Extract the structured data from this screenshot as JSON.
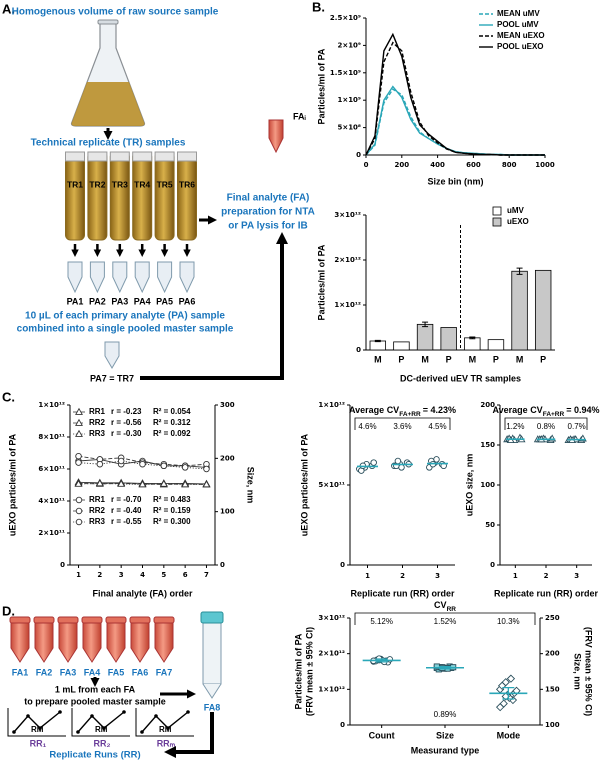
{
  "panel_labels": [
    "A.",
    "B.",
    "C.",
    "D."
  ],
  "diagram_a": {
    "source": "Homogenous volume of raw source sample",
    "tr_heading": "Technical replicate (TR) samples",
    "tubes": [
      "TR1",
      "TR2",
      "TR3",
      "TR4",
      "TR5",
      "TR6"
    ],
    "pa": [
      "PA1",
      "PA2",
      "PA3",
      "PA4",
      "PA5",
      "PA6"
    ],
    "pool_text": [
      "10 µL of each primary analyte (PA) sample",
      "combined into a single pooled master sample"
    ],
    "pool_tube": "PA7 = TR7",
    "fa_tube": "FAᵢ",
    "fa_text": [
      "Final analyte (FA)",
      "preparation for NTA",
      "or PA lysis for IB"
    ]
  },
  "diagram_d": {
    "tubes": [
      "FA1",
      "FA2",
      "FA3",
      "FA4",
      "FA5",
      "FA6",
      "FA7"
    ],
    "master": "FA8",
    "text": [
      "1 mL from each FA",
      "to prepare pooled master sample"
    ],
    "runs": [
      "RR₁",
      "RR₂",
      "RRₘ"
    ],
    "run_point": "RM",
    "caption": "Replicate Runs (RR)"
  },
  "chart_data": [
    {
      "type": "line",
      "xlabel": "Size bin (nm)",
      "ylabel": "Particles/ml of PA",
      "legend": "upper right",
      "x": [
        0,
        50,
        100,
        150,
        200,
        250,
        300,
        350,
        400,
        450,
        500,
        550,
        600,
        650,
        700,
        750,
        800,
        850,
        900,
        950,
        1000
      ],
      "xlim": [
        0,
        1000
      ],
      "xticks": [
        0,
        200,
        400,
        600,
        800,
        1000
      ],
      "ylim": [
        0,
        2500000000.0
      ],
      "yticks": [
        0,
        {
          "value": 500000000.0,
          "label": "5×10⁸"
        },
        {
          "value": 1000000000.0,
          "label": "1×10⁹"
        },
        {
          "value": 1500000000.0,
          "label": "1.5×10⁹"
        },
        {
          "value": 2000000000.0,
          "label": "2×10⁹"
        },
        {
          "value": 2500000000.0,
          "label": "2.5×10⁹"
        }
      ],
      "series": [
        {
          "name": "MEAN uMV",
          "color": "#2aa7b8",
          "linestyle": "dashed",
          "values": [
            0,
            180000000.0,
            950000000.0,
            1200000000.0,
            1100000000.0,
            700000000.0,
            420000000.0,
            300000000.0,
            200000000.0,
            120000000.0,
            60000000.0,
            40000000.0,
            30000000.0,
            20000000.0,
            10000000.0,
            10000000.0,
            0,
            0,
            0,
            0,
            0
          ]
        },
        {
          "name": "POOL uMV",
          "color": "#2aa7b8",
          "linestyle": "solid",
          "values": [
            0,
            200000000.0,
            1000000000.0,
            1250000000.0,
            1050000000.0,
            650000000.0,
            400000000.0,
            300000000.0,
            200000000.0,
            120000000.0,
            60000000.0,
            40000000.0,
            30000000.0,
            20000000.0,
            10000000.0,
            10000000.0,
            0,
            0,
            0,
            0,
            0
          ]
        },
        {
          "name": "MEAN uEXO",
          "color": "#000000",
          "linestyle": "dashed",
          "values": [
            0,
            300000000.0,
            1700000000.0,
            2050000000.0,
            1900000000.0,
            1150000000.0,
            600000000.0,
            350000000.0,
            220000000.0,
            110000000.0,
            50000000.0,
            30000000.0,
            20000000.0,
            10000000.0,
            10000000.0,
            0,
            0,
            0,
            0,
            0,
            0
          ]
        },
        {
          "name": "POOL uEXO",
          "color": "#000000",
          "linestyle": "solid",
          "values": [
            0,
            350000000.0,
            1900000000.0,
            2200000000.0,
            1800000000.0,
            1050000000.0,
            550000000.0,
            380000000.0,
            250000000.0,
            120000000.0,
            50000000.0,
            30000000.0,
            20000000.0,
            10000000.0,
            10000000.0,
            0,
            0,
            0,
            0,
            0,
            0
          ]
        }
      ]
    },
    {
      "type": "bar",
      "xlabel": "DC-derived uEV TR samples",
      "ylabel": "Particles/ml of PA",
      "legend": "upper right",
      "categories": [
        "M",
        "P",
        "M",
        "P",
        "M",
        "P",
        "M",
        "P"
      ],
      "ylim": [
        0,
        3000000000000.0
      ],
      "yticks": [
        0,
        {
          "value": 1000000000000.0,
          "label": "1×10¹²"
        },
        {
          "value": 2000000000000.0,
          "label": "2×10¹²"
        },
        {
          "value": 3000000000000.0,
          "label": "3×10¹²"
        }
      ],
      "series": [
        {
          "name": "uMV",
          "color": "#ffffff",
          "values": [
            200000000000.0,
            180000000000.0,
            null,
            null,
            270000000000.0,
            230000000000.0,
            null,
            null
          ],
          "errors": [
            15000000000.0,
            null,
            null,
            null,
            20000000000.0,
            null,
            null,
            null
          ]
        },
        {
          "name": "uEXO",
          "color": "#c8c8c8",
          "values": [
            null,
            null,
            570000000000.0,
            500000000000.0,
            null,
            null,
            1750000000000.0,
            1770000000000.0
          ],
          "errors": [
            null,
            null,
            50000000000.0,
            null,
            null,
            null,
            70000000000.0,
            null
          ]
        }
      ]
    },
    {
      "type": "line",
      "xlabel": "Final analyte (FA) order",
      "ylabel": "uEXO particles/ml of PA",
      "y2label": "Size, nm",
      "x": [
        1,
        2,
        3,
        4,
        5,
        6,
        7
      ],
      "xlim": [
        0.6,
        7.4
      ],
      "xticks": [
        1,
        2,
        3,
        4,
        5,
        6,
        7
      ],
      "ylim": [
        0,
        1000000000000.0
      ],
      "yticks": [
        0,
        {
          "value": 200000000000.0,
          "label": "2×10¹¹"
        },
        {
          "value": 400000000000.0,
          "label": "4×10¹¹"
        },
        {
          "value": 600000000000.0,
          "label": "6×10¹¹"
        },
        {
          "value": 800000000000.0,
          "label": "8×10¹¹"
        },
        {
          "value": 1000000000000.0,
          "label": "1×10¹²"
        }
      ],
      "y2lim": [
        0,
        300
      ],
      "y2ticks": [
        0,
        100,
        200,
        300
      ],
      "series": [
        {
          "name": "RR1",
          "axis": "y2",
          "marker": "triangle",
          "linestyle": "solid",
          "color": "#333333",
          "stats": [
            "r = -0.23",
            "R² = 0.054"
          ],
          "values": [
            155,
            154,
            154,
            153,
            153,
            153,
            152
          ]
        },
        {
          "name": "RR2",
          "axis": "y2",
          "marker": "triangle",
          "linestyle": "dashed",
          "color": "#333333",
          "stats": [
            "r = -0.56",
            "R² = 0.312"
          ],
          "values": [
            153,
            152,
            153,
            152,
            151,
            152,
            151
          ]
        },
        {
          "name": "RR3",
          "axis": "y2",
          "marker": "triangle",
          "linestyle": "dotted",
          "color": "#333333",
          "stats": [
            "r = -0.30",
            "R² = 0.092"
          ],
          "values": [
            152,
            153,
            152,
            151,
            152,
            151,
            151
          ]
        },
        {
          "name": "RR1",
          "marker": "circle",
          "linestyle": "solid",
          "color": "#333333",
          "stats": [
            "r = -0.70",
            "R² = 0.483"
          ],
          "values": [
            650000000000.0,
            660000000000.0,
            630000000000.0,
            650000000000.0,
            620000000000.0,
            620000000000.0,
            610000000000.0
          ]
        },
        {
          "name": "RR2",
          "marker": "circle",
          "linestyle": "dashed",
          "color": "#333333",
          "stats": [
            "r = -0.40",
            "R² = 0.159"
          ],
          "values": [
            680000000000.0,
            660000000000.0,
            670000000000.0,
            640000000000.0,
            630000000000.0,
            620000000000.0,
            630000000000.0
          ]
        },
        {
          "name": "RR3",
          "marker": "circle",
          "linestyle": "dotted",
          "color": "#333333",
          "stats": [
            "r = -0.55",
            "R² = 0.300"
          ],
          "values": [
            640000000000.0,
            630000000000.0,
            650000000000.0,
            630000000000.0,
            620000000000.0,
            610000000000.0,
            600000000000.0
          ]
        }
      ]
    },
    {
      "type": "strip",
      "xlabel": "Replicate run (RR) order",
      "ylabel": "uEXO particles/ml of PA",
      "marker": "circle",
      "color": "#2aa7b8",
      "categories": [
        "1",
        "2",
        "3"
      ],
      "ylim": [
        0,
        1000000000000.0
      ],
      "yticks": [
        0,
        {
          "value": 500000000000.0,
          "label": "5×10¹¹"
        },
        {
          "value": 1000000000000.0,
          "label": "1×10¹²"
        }
      ],
      "annot_title": "Average CV",
      "annot_sub": "FA+RR",
      "annot_value": "= 4.23%",
      "group_labels": [
        "4.6%",
        "3.6%",
        "4.5%"
      ],
      "values": [
        [
          600000000000.0,
          610000000000.0,
          630000000000.0,
          620000000000.0,
          640000000000.0,
          590000000000.0,
          620000000000.0
        ],
        [
          620000000000.0,
          630000000000.0,
          610000000000.0,
          640000000000.0,
          630000000000.0,
          620000000000.0,
          650000000000.0
        ],
        [
          610000000000.0,
          640000000000.0,
          660000000000.0,
          630000000000.0,
          620000000000.0,
          650000000000.0,
          630000000000.0
        ]
      ]
    },
    {
      "type": "strip",
      "xlabel": "Replicate run (RR) order",
      "ylabel": "uEXO size, nm",
      "marker": "triangle",
      "color": "#2aa7b8",
      "categories": [
        "1",
        "2",
        "3"
      ],
      "ylim": [
        0,
        200
      ],
      "yticks": [
        0,
        50,
        100,
        150,
        200
      ],
      "annot_title": "Average CV",
      "annot_sub": "FA+RR",
      "annot_value": "= 0.94%",
      "group_labels": [
        "1.2%",
        "0.8%",
        "0.7%"
      ],
      "values": [
        [
          157,
          158,
          156,
          159,
          157,
          158,
          156
        ],
        [
          157,
          158,
          157,
          156,
          158,
          157,
          157
        ],
        [
          156,
          157,
          157,
          156,
          158,
          157,
          156
        ]
      ]
    },
    {
      "type": "strip",
      "xlabel": "Measurand type",
      "ylabel": [
        "Particles/ml of PA",
        "(FRV mean ± 95% CI)"
      ],
      "y2label": [
        "Size, nm",
        "(FRV mean ± 95% CI)"
      ],
      "marker": [
        "circle",
        "square",
        "diamond"
      ],
      "axes": [
        "y",
        "y2",
        "y2"
      ],
      "color": "#2aa7b8",
      "categories": [
        "Count",
        "Size",
        "Mode"
      ],
      "ylim": [
        0,
        3000000000000.0
      ],
      "yticks": [
        0,
        {
          "value": 1000000000000.0,
          "label": "1×10¹²"
        },
        {
          "value": 2000000000000.0,
          "label": "2×10¹²"
        },
        {
          "value": 3000000000000.0,
          "label": "3×10¹²"
        }
      ],
      "y2lim": [
        100,
        250
      ],
      "y2ticks": [
        100,
        150,
        200,
        250
      ],
      "annot_title": "CV",
      "annot_sub": "RR",
      "group_labels": [
        "5.12%",
        "1.52%",
        "10.3%"
      ],
      "extra_label": "0.89%",
      "ci": [
        40000000000.0,
        1.5,
        8
      ],
      "values": [
        [
          1780000000000.0,
          1820000000000.0,
          1850000000000.0,
          1800000000000.0,
          1760000000000.0,
          1790000000000.0,
          1830000000000.0,
          1810000000000.0,
          1770000000000.0,
          1840000000000.0,
          1800000000000.0,
          1860000000000.0
        ],
        [
          180,
          181,
          179,
          182,
          180,
          178,
          181,
          180,
          179,
          181,
          182,
          180
        ],
        [
          150,
          160,
          142,
          135,
          145,
          155,
          130,
          138,
          165,
          148,
          125,
          140
        ]
      ]
    }
  ]
}
